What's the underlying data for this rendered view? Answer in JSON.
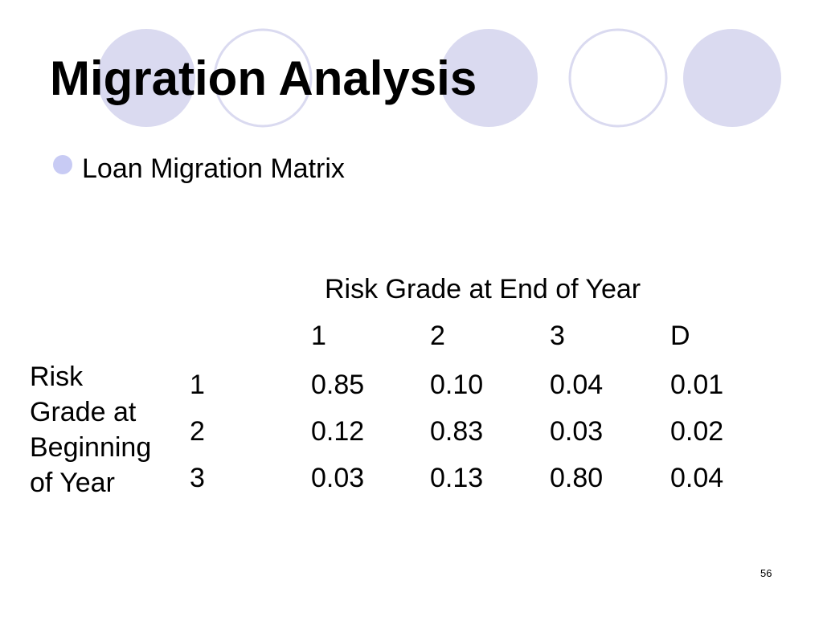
{
  "header": {
    "title": "Migration Analysis"
  },
  "bullet": "Loan Migration Matrix",
  "table": {
    "column_header": "Risk Grade at End of Year",
    "columns": [
      "1",
      "2",
      "3",
      "D"
    ],
    "row_header_lines": [
      "Risk",
      "Grade at",
      "Beginning",
      "of Year"
    ],
    "row_labels": [
      "1",
      "2",
      "3"
    ],
    "rows": [
      [
        "0.85",
        "0.10",
        "0.04",
        "0.01"
      ],
      [
        "0.12",
        "0.83",
        "0.03",
        "0.02"
      ],
      [
        "0.03",
        "0.13",
        "0.80",
        "0.04"
      ]
    ]
  },
  "page_number": "56"
}
